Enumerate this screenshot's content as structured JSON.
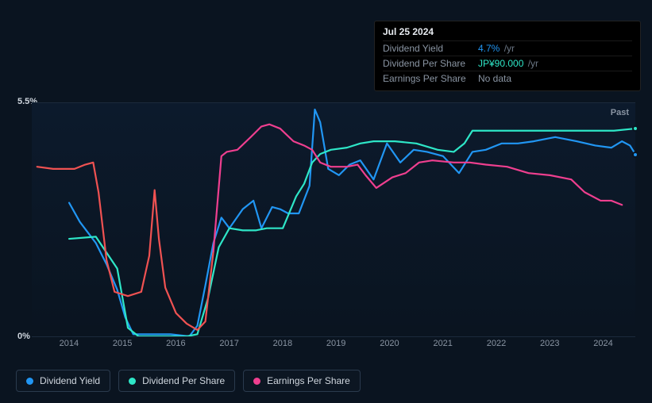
{
  "tooltip": {
    "date": "Jul 25 2024",
    "rows": [
      {
        "label": "Dividend Yield",
        "value": "4.7%",
        "unit": "/yr",
        "color": "#2196f3"
      },
      {
        "label": "Dividend Per Share",
        "value": "JP¥90.000",
        "unit": "/yr",
        "color": "#2ee6c7"
      },
      {
        "label": "Earnings Per Share",
        "value": "No data",
        "unit": "",
        "color": "#8a95a3"
      }
    ]
  },
  "chart": {
    "type": "line",
    "background_gradient": [
      "#0c1a2c",
      "#0a1420"
    ],
    "grid_color": "#1b2a3c",
    "past_label": "Past",
    "y": {
      "min": 0,
      "max": 5.5,
      "ticks": [
        {
          "v": 5.5,
          "label": "5.5%"
        },
        {
          "v": 0,
          "label": "0%"
        }
      ],
      "label_color": "#cfd6de",
      "label_fontsize": 11
    },
    "x": {
      "min": 2013.6,
      "max": 2024.9,
      "ticks": [
        2014,
        2015,
        2016,
        2017,
        2018,
        2019,
        2020,
        2021,
        2022,
        2023,
        2024
      ],
      "label_color": "#8a95a3",
      "label_fontsize": 11
    },
    "series": [
      {
        "id": "dividend_yield",
        "name": "Dividend Yield",
        "color": "#2196f3",
        "stroke_width": 2.2,
        "end_dot": true,
        "data": [
          [
            2014.3,
            3.15
          ],
          [
            2014.5,
            2.7
          ],
          [
            2014.8,
            2.2
          ],
          [
            2015.0,
            1.7
          ],
          [
            2015.2,
            1.1
          ],
          [
            2015.35,
            0.45
          ],
          [
            2015.5,
            0.05
          ],
          [
            2015.8,
            0.05
          ],
          [
            2016.2,
            0.05
          ],
          [
            2016.55,
            0.0
          ],
          [
            2016.7,
            0.25
          ],
          [
            2016.85,
            1.2
          ],
          [
            2017.0,
            2.2
          ],
          [
            2017.15,
            2.8
          ],
          [
            2017.3,
            2.55
          ],
          [
            2017.55,
            3.0
          ],
          [
            2017.75,
            3.2
          ],
          [
            2017.9,
            2.55
          ],
          [
            2018.1,
            3.05
          ],
          [
            2018.25,
            3.0
          ],
          [
            2018.4,
            2.9
          ],
          [
            2018.6,
            2.9
          ],
          [
            2018.8,
            3.55
          ],
          [
            2018.9,
            5.35
          ],
          [
            2019.0,
            5.05
          ],
          [
            2019.15,
            3.95
          ],
          [
            2019.35,
            3.8
          ],
          [
            2019.55,
            4.05
          ],
          [
            2019.75,
            4.15
          ],
          [
            2020.0,
            3.7
          ],
          [
            2020.25,
            4.55
          ],
          [
            2020.5,
            4.1
          ],
          [
            2020.75,
            4.4
          ],
          [
            2021.0,
            4.35
          ],
          [
            2021.3,
            4.25
          ],
          [
            2021.6,
            3.85
          ],
          [
            2021.85,
            4.35
          ],
          [
            2022.1,
            4.4
          ],
          [
            2022.4,
            4.55
          ],
          [
            2022.7,
            4.55
          ],
          [
            2023.0,
            4.6
          ],
          [
            2023.4,
            4.7
          ],
          [
            2023.8,
            4.6
          ],
          [
            2024.15,
            4.5
          ],
          [
            2024.45,
            4.45
          ],
          [
            2024.65,
            4.6
          ],
          [
            2024.8,
            4.5
          ],
          [
            2024.9,
            4.3
          ]
        ]
      },
      {
        "id": "dividend_per_share",
        "name": "Dividend Per Share",
        "color": "#2ee6c7",
        "stroke_width": 2.2,
        "end_dot": true,
        "data": [
          [
            2014.3,
            2.3
          ],
          [
            2014.8,
            2.35
          ],
          [
            2015.2,
            1.6
          ],
          [
            2015.4,
            0.2
          ],
          [
            2015.6,
            0.0
          ],
          [
            2016.0,
            0.0
          ],
          [
            2016.5,
            0.0
          ],
          [
            2016.7,
            0.05
          ],
          [
            2016.9,
            0.9
          ],
          [
            2017.1,
            2.1
          ],
          [
            2017.3,
            2.55
          ],
          [
            2017.55,
            2.5
          ],
          [
            2017.8,
            2.5
          ],
          [
            2018.0,
            2.55
          ],
          [
            2018.3,
            2.55
          ],
          [
            2018.55,
            3.3
          ],
          [
            2018.7,
            3.6
          ],
          [
            2018.85,
            4.1
          ],
          [
            2019.0,
            4.3
          ],
          [
            2019.2,
            4.4
          ],
          [
            2019.5,
            4.45
          ],
          [
            2019.75,
            4.55
          ],
          [
            2020.0,
            4.6
          ],
          [
            2020.4,
            4.6
          ],
          [
            2020.8,
            4.55
          ],
          [
            2021.2,
            4.4
          ],
          [
            2021.5,
            4.35
          ],
          [
            2021.7,
            4.55
          ],
          [
            2021.85,
            4.85
          ],
          [
            2022.1,
            4.85
          ],
          [
            2022.6,
            4.85
          ],
          [
            2023.0,
            4.85
          ],
          [
            2023.5,
            4.85
          ],
          [
            2024.0,
            4.85
          ],
          [
            2024.5,
            4.85
          ],
          [
            2024.9,
            4.9
          ]
        ]
      },
      {
        "id": "earnings_per_share",
        "name": "Earnings Per Share",
        "color": "#ef3f8f",
        "stroke_width": 2.2,
        "end_dot": false,
        "segments": [
          {
            "color": "#f05252",
            "data": [
              [
                2013.7,
                4.0
              ],
              [
                2014.0,
                3.95
              ],
              [
                2014.4,
                3.95
              ],
              [
                2014.6,
                4.05
              ],
              [
                2014.75,
                4.1
              ],
              [
                2014.85,
                3.4
              ],
              [
                2015.0,
                1.8
              ],
              [
                2015.15,
                1.05
              ],
              [
                2015.4,
                0.95
              ],
              [
                2015.65,
                1.05
              ],
              [
                2015.8,
                1.9
              ],
              [
                2015.9,
                3.45
              ],
              [
                2015.98,
                2.3
              ],
              [
                2016.1,
                1.15
              ],
              [
                2016.3,
                0.55
              ],
              [
                2016.5,
                0.3
              ],
              [
                2016.7,
                0.15
              ],
              [
                2016.85,
                0.35
              ],
              [
                2017.0,
                2.0
              ]
            ]
          },
          {
            "color": "#ef3f8f",
            "data": [
              [
                2017.0,
                2.0
              ],
              [
                2017.15,
                4.25
              ],
              [
                2017.25,
                4.35
              ],
              [
                2017.45,
                4.4
              ],
              [
                2017.7,
                4.7
              ],
              [
                2017.9,
                4.95
              ],
              [
                2018.05,
                5.0
              ],
              [
                2018.25,
                4.9
              ],
              [
                2018.5,
                4.6
              ],
              [
                2018.7,
                4.5
              ],
              [
                2018.85,
                4.4
              ],
              [
                2019.0,
                4.1
              ],
              [
                2019.2,
                4.0
              ],
              [
                2019.5,
                4.0
              ],
              [
                2019.7,
                4.05
              ],
              [
                2019.85,
                3.8
              ],
              [
                2020.05,
                3.5
              ],
              [
                2020.35,
                3.75
              ],
              [
                2020.6,
                3.85
              ],
              [
                2020.85,
                4.1
              ],
              [
                2021.1,
                4.15
              ],
              [
                2021.5,
                4.1
              ],
              [
                2021.8,
                4.1
              ],
              [
                2022.1,
                4.05
              ],
              [
                2022.5,
                4.0
              ],
              [
                2022.9,
                3.85
              ],
              [
                2023.3,
                3.8
              ],
              [
                2023.7,
                3.7
              ],
              [
                2023.95,
                3.4
              ],
              [
                2024.25,
                3.2
              ],
              [
                2024.45,
                3.2
              ],
              [
                2024.65,
                3.1
              ]
            ]
          }
        ]
      }
    ]
  },
  "legend": {
    "items": [
      {
        "id": "dividend_yield",
        "label": "Dividend Yield",
        "color": "#2196f3"
      },
      {
        "id": "dividend_per_share",
        "label": "Dividend Per Share",
        "color": "#2ee6c7"
      },
      {
        "id": "earnings_per_share",
        "label": "Earnings Per Share",
        "color": "#ef3f8f"
      }
    ],
    "border_color": "#2a3a4d",
    "text_color": "#cfd6de"
  }
}
